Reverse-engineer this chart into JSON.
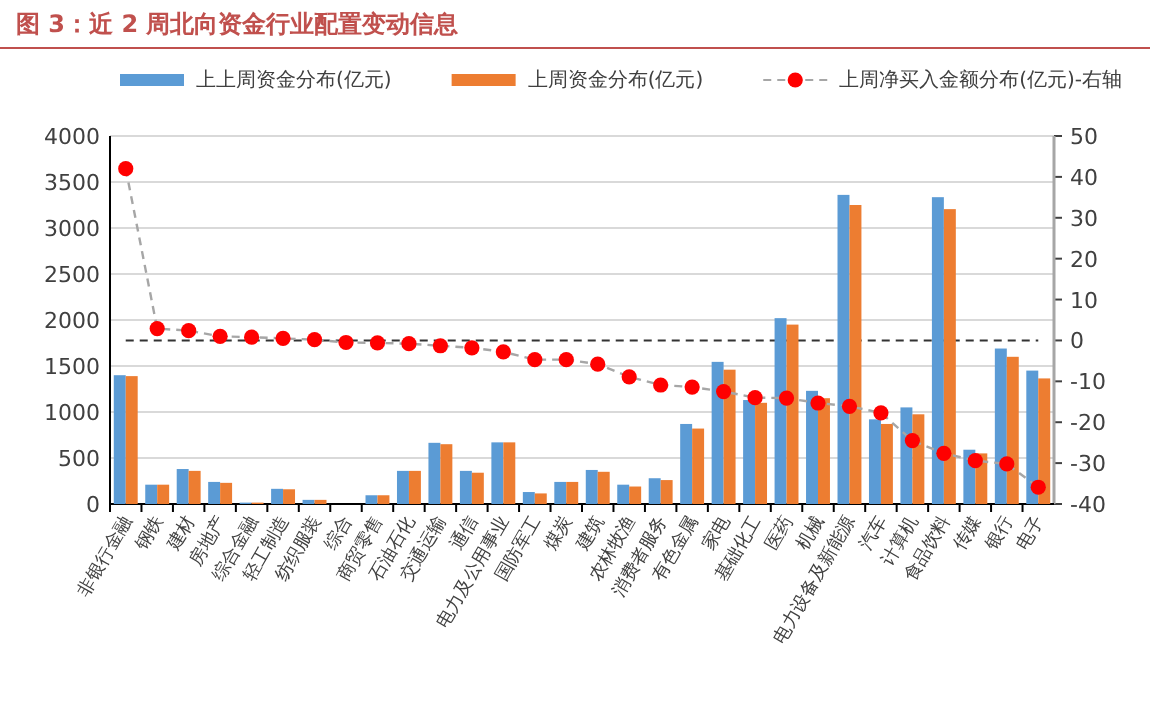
{
  "chart_data": {
    "type": "bar",
    "title": "图 3：近 2 周北向资金行业配置变动信息",
    "categories": [
      "非银行金融",
      "钢铁",
      "建材",
      "房地产",
      "综合金融",
      "轻工制造",
      "纺织服装",
      "综合",
      "商贸零售",
      "石油石化",
      "交通运输",
      "通信",
      "电力及公用事业",
      "国防军工",
      "煤炭",
      "建筑",
      "农林牧渔",
      "消费者服务",
      "有色金属",
      "家电",
      "基础化工",
      "医药",
      "机械",
      "电力设备及新能源",
      "汽车",
      "计算机",
      "食品饮料",
      "传媒",
      "银行",
      "电子"
    ],
    "series": [
      {
        "name": "上上周资金分布(亿元)",
        "color": "#5b9bd5",
        "values": [
          1400,
          210,
          380,
          240,
          15,
          165,
          45,
          0,
          95,
          360,
          665,
          360,
          670,
          130,
          240,
          370,
          210,
          280,
          870,
          1545,
          1130,
          2020,
          1230,
          3360,
          920,
          1050,
          3335,
          590,
          1690,
          1450
        ]
      },
      {
        "name": "上周资金分布(亿元)",
        "color": "#ed7d31",
        "values": [
          1390,
          210,
          360,
          230,
          15,
          160,
          45,
          0,
          95,
          360,
          650,
          340,
          670,
          115,
          240,
          350,
          190,
          260,
          820,
          1460,
          1100,
          1950,
          1150,
          3250,
          870,
          975,
          3205,
          550,
          1600,
          1365
        ]
      },
      {
        "name": "上周净买入金额分布(亿元)-右轴",
        "type": "line",
        "axis": "y2",
        "color": "#ff0000",
        "marker": "circle",
        "line_style": "dashed",
        "values": [
          42,
          2.9,
          2.4,
          1,
          0.8,
          0.5,
          0.2,
          -0.5,
          -0.6,
          -0.8,
          -1.3,
          -1.8,
          -2.8,
          -4.7,
          -4.7,
          -5.8,
          -8.9,
          -10.9,
          -11.4,
          -12.5,
          -14,
          -14.1,
          -15.3,
          -16.1,
          -17.7,
          -24.5,
          -27.6,
          -29.4,
          -30.2,
          -35.9
        ]
      }
    ],
    "ylim": [
      0,
      4000
    ],
    "yticks": [
      0,
      500,
      1000,
      1500,
      2000,
      2500,
      3000,
      3500,
      4000
    ],
    "y2lim": [
      -40,
      50
    ],
    "y2ticks": [
      -40,
      -30,
      -20,
      -10,
      0,
      10,
      20,
      30,
      40,
      50
    ],
    "ref_lines": [
      {
        "axis": "y2",
        "value": 0,
        "color": "#333333",
        "line_style": "dashed"
      }
    ],
    "grid": "y",
    "legend": "top"
  }
}
